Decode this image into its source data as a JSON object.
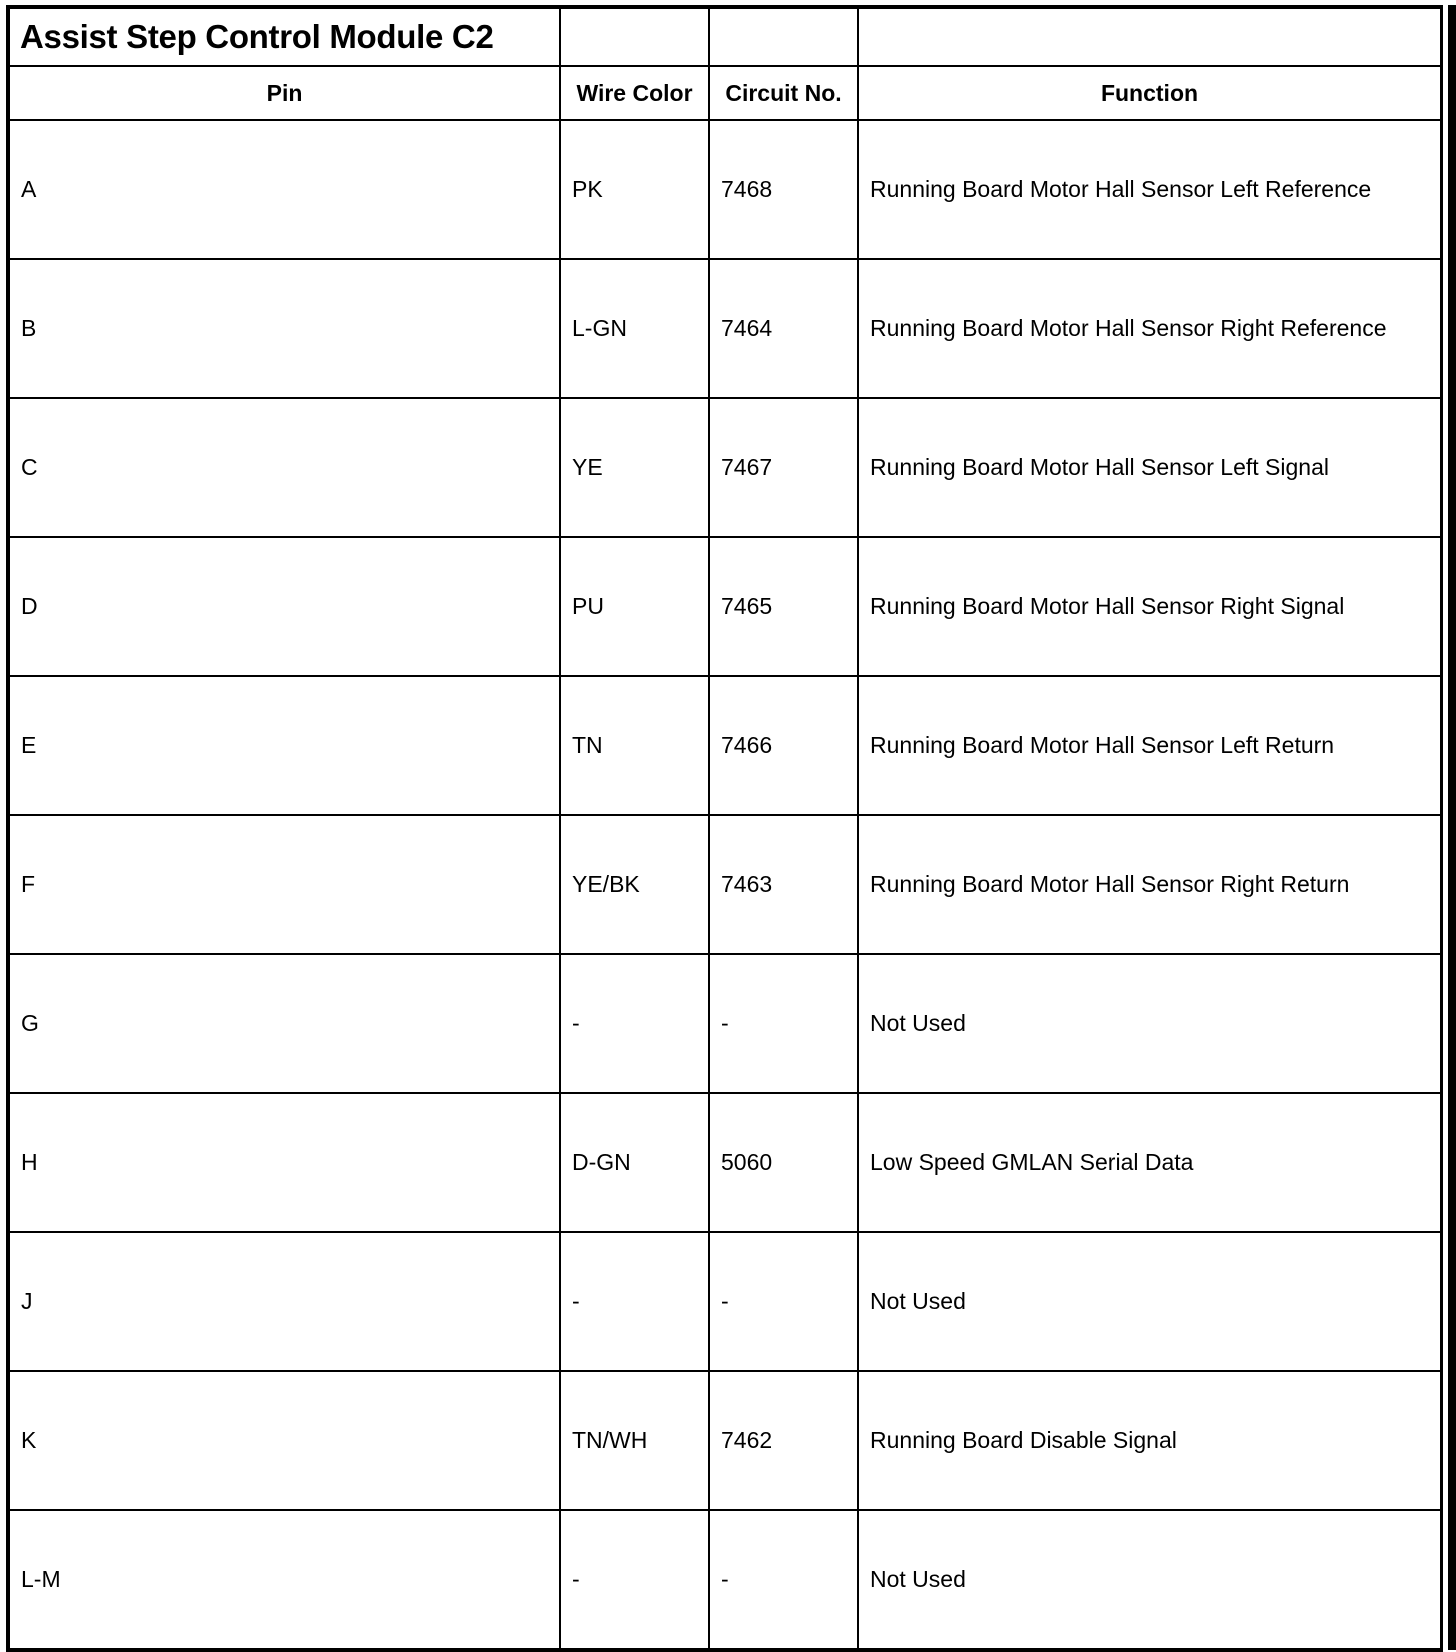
{
  "title": "Assist Step Control Module C2",
  "headers": {
    "pin": "Pin",
    "wire_color": "Wire Color",
    "circuit_no": "Circuit No.",
    "function": "Function"
  },
  "rows": [
    {
      "pin": "A",
      "wire_color": "PK",
      "circuit_no": "7468",
      "function": "Running Board Motor Hall Sensor Left Reference"
    },
    {
      "pin": "B",
      "wire_color": "L-GN",
      "circuit_no": "7464",
      "function": "Running Board Motor Hall Sensor Right Reference"
    },
    {
      "pin": "C",
      "wire_color": "YE",
      "circuit_no": "7467",
      "function": "Running Board Motor Hall Sensor Left Signal"
    },
    {
      "pin": "D",
      "wire_color": "PU",
      "circuit_no": "7465",
      "function": "Running Board Motor Hall Sensor Right Signal"
    },
    {
      "pin": "E",
      "wire_color": "TN",
      "circuit_no": "7466",
      "function": "Running Board Motor Hall Sensor Left Return"
    },
    {
      "pin": "F",
      "wire_color": "YE/BK",
      "circuit_no": "7463",
      "function": "Running Board Motor Hall Sensor Right Return"
    },
    {
      "pin": "G",
      "wire_color": "-",
      "circuit_no": "-",
      "function": "Not Used"
    },
    {
      "pin": "H",
      "wire_color": "D-GN",
      "circuit_no": "5060",
      "function": "Low Speed GMLAN Serial Data"
    },
    {
      "pin": "J",
      "wire_color": "-",
      "circuit_no": "-",
      "function": "Not Used"
    },
    {
      "pin": "K",
      "wire_color": "TN/WH",
      "circuit_no": "7462",
      "function": "Running Board Disable Signal"
    },
    {
      "pin": "L-M",
      "wire_color": "-",
      "circuit_no": "-",
      "function": "Not Used"
    }
  ]
}
